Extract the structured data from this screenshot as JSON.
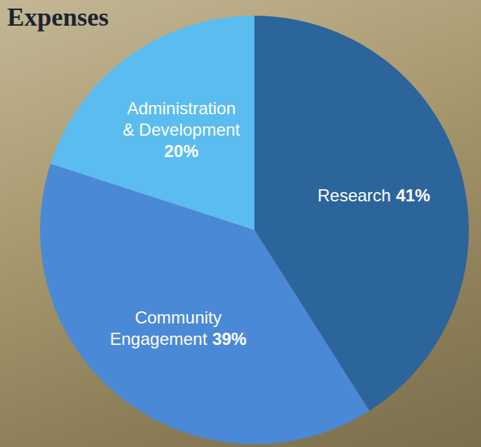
{
  "chart_data": {
    "type": "pie",
    "title": "Expenses",
    "categories": [
      "Research",
      "Community Engagement",
      "Administration & Development"
    ],
    "values": [
      41,
      39,
      20
    ],
    "value_labels": [
      "41%",
      "39%",
      "20%"
    ],
    "colors": [
      "#2c649c",
      "#4a89d6",
      "#5bbcf0"
    ],
    "data_labels": true
  }
}
